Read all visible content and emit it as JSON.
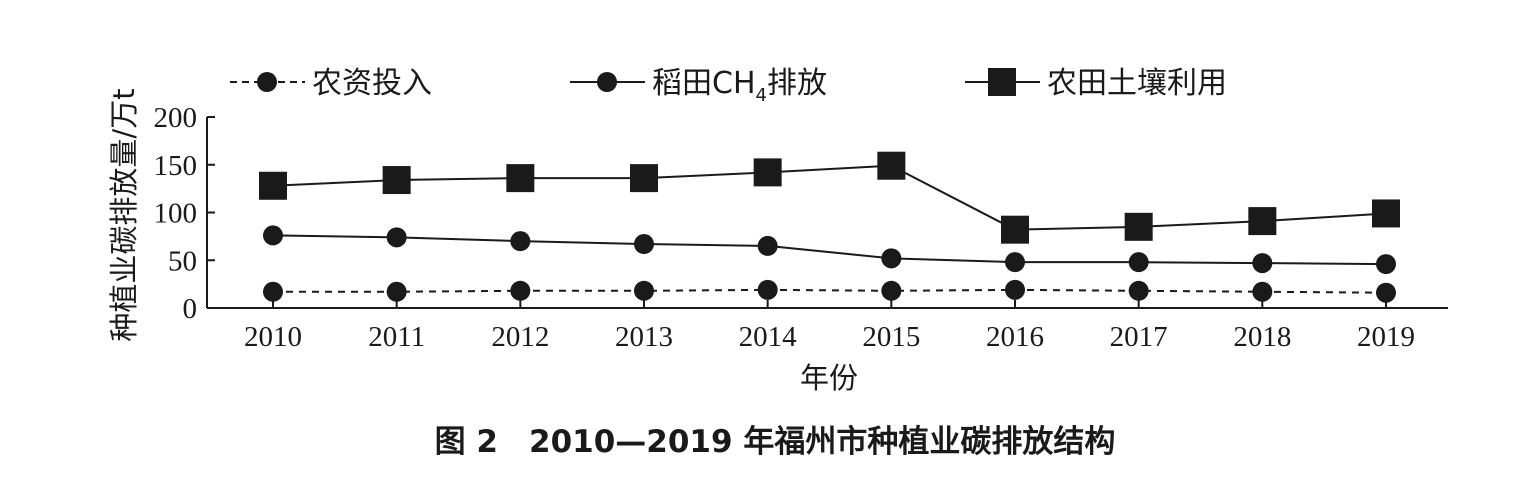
{
  "chart_data": {
    "type": "line",
    "title": "图 2　2010—2019 年福州市种植业碳排放结构",
    "xlabel": "年份",
    "ylabel": "种植业碳排放量/万t",
    "categories": [
      "2010",
      "2011",
      "2012",
      "2013",
      "2014",
      "2015",
      "2016",
      "2017",
      "2018",
      "2019"
    ],
    "ylim": [
      0,
      200
    ],
    "yticks": [
      0,
      50,
      100,
      150,
      200
    ],
    "grid": false,
    "legend_position": "top",
    "series": [
      {
        "name": "农资投入",
        "style": "dashed",
        "marker": "circle",
        "values": [
          17,
          17,
          18,
          18,
          19,
          18,
          19,
          18,
          17,
          16
        ]
      },
      {
        "name": "稻田CH4排放",
        "name_main": "稻田CH",
        "name_sub": "4",
        "name_tail": "排放",
        "style": "solid",
        "marker": "circle",
        "values": [
          76,
          74,
          70,
          67,
          65,
          52,
          48,
          48,
          47,
          46
        ]
      },
      {
        "name": "农田土壤利用",
        "style": "solid",
        "marker": "square",
        "values": [
          128,
          134,
          136,
          136,
          142,
          149,
          82,
          85,
          91,
          99
        ]
      }
    ],
    "color": "#1a1a1a"
  }
}
